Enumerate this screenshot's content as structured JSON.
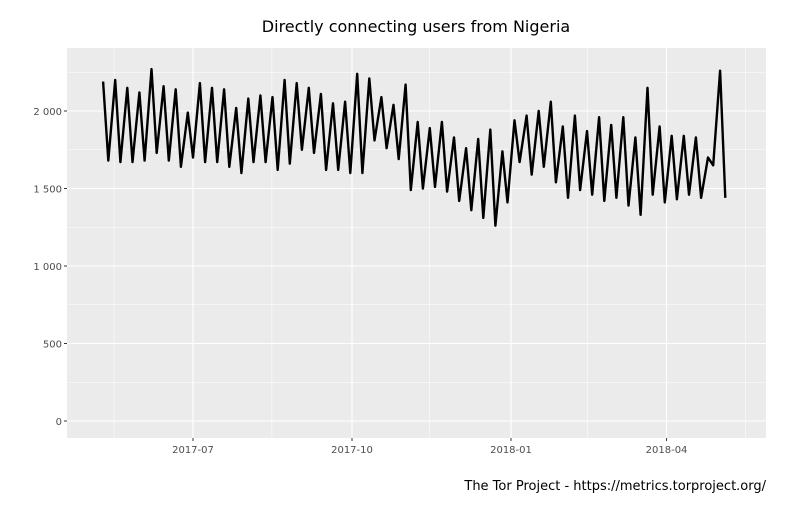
{
  "chart_data": {
    "type": "line",
    "title": "Directly connecting users from Nigeria",
    "caption": "The Tor Project - https://metrics.torproject.org/",
    "xlabel": "",
    "ylabel": "",
    "ylim": [
      0,
      2300
    ],
    "xlim": [
      "2017-04-20",
      "2018-05-25"
    ],
    "grid": true,
    "background": "#EBEBEB",
    "line_color": "#000000",
    "y_ticks": [
      {
        "value": 0,
        "label": "0"
      },
      {
        "value": 500,
        "label": "500"
      },
      {
        "value": 1000,
        "label": "1 000"
      },
      {
        "value": 1500,
        "label": "1 500"
      },
      {
        "value": 2000,
        "label": "2 000"
      }
    ],
    "x_ticks": [
      {
        "value": "2017-07-01",
        "label": "2017-07"
      },
      {
        "value": "2017-10-01",
        "label": "2017-10"
      },
      {
        "value": "2018-01-01",
        "label": "2018-01"
      },
      {
        "value": "2018-04-01",
        "label": "2018-04"
      }
    ],
    "series": [
      {
        "points": [
          [
            "2017-05-10",
            2190
          ],
          [
            "2017-05-13",
            1680
          ],
          [
            "2017-05-17",
            2200
          ],
          [
            "2017-05-20",
            1670
          ],
          [
            "2017-05-24",
            2150
          ],
          [
            "2017-05-27",
            1670
          ],
          [
            "2017-05-31",
            2120
          ],
          [
            "2017-06-03",
            1680
          ],
          [
            "2017-06-07",
            2270
          ],
          [
            "2017-06-10",
            1730
          ],
          [
            "2017-06-14",
            2160
          ],
          [
            "2017-06-17",
            1680
          ],
          [
            "2017-06-21",
            2140
          ],
          [
            "2017-06-24",
            1640
          ],
          [
            "2017-06-28",
            1990
          ],
          [
            "2017-07-01",
            1700
          ],
          [
            "2017-07-05",
            2180
          ],
          [
            "2017-07-08",
            1670
          ],
          [
            "2017-07-12",
            2150
          ],
          [
            "2017-07-15",
            1670
          ],
          [
            "2017-07-19",
            2140
          ],
          [
            "2017-07-22",
            1640
          ],
          [
            "2017-07-26",
            2020
          ],
          [
            "2017-07-29",
            1600
          ],
          [
            "2017-08-02",
            2080
          ],
          [
            "2017-08-05",
            1670
          ],
          [
            "2017-08-09",
            2100
          ],
          [
            "2017-08-12",
            1670
          ],
          [
            "2017-08-16",
            2090
          ],
          [
            "2017-08-19",
            1620
          ],
          [
            "2017-08-23",
            2200
          ],
          [
            "2017-08-26",
            1660
          ],
          [
            "2017-08-30",
            2180
          ],
          [
            "2017-09-02",
            1750
          ],
          [
            "2017-09-06",
            2150
          ],
          [
            "2017-09-09",
            1730
          ],
          [
            "2017-09-13",
            2110
          ],
          [
            "2017-09-16",
            1620
          ],
          [
            "2017-09-20",
            2050
          ],
          [
            "2017-09-23",
            1620
          ],
          [
            "2017-09-27",
            2060
          ],
          [
            "2017-09-30",
            1600
          ],
          [
            "2017-10-04",
            2240
          ],
          [
            "2017-10-07",
            1600
          ],
          [
            "2017-10-11",
            2210
          ],
          [
            "2017-10-14",
            1810
          ],
          [
            "2017-10-18",
            2090
          ],
          [
            "2017-10-21",
            1760
          ],
          [
            "2017-10-25",
            2040
          ],
          [
            "2017-10-28",
            1690
          ],
          [
            "2017-11-01",
            2170
          ],
          [
            "2017-11-04",
            1490
          ],
          [
            "2017-11-08",
            1930
          ],
          [
            "2017-11-11",
            1500
          ],
          [
            "2017-11-15",
            1890
          ],
          [
            "2017-11-18",
            1510
          ],
          [
            "2017-11-22",
            1930
          ],
          [
            "2017-11-25",
            1480
          ],
          [
            "2017-11-29",
            1830
          ],
          [
            "2017-12-02",
            1420
          ],
          [
            "2017-12-06",
            1760
          ],
          [
            "2017-12-09",
            1360
          ],
          [
            "2017-12-13",
            1820
          ],
          [
            "2017-12-16",
            1310
          ],
          [
            "2017-12-20",
            1880
          ],
          [
            "2017-12-23",
            1260
          ],
          [
            "2017-12-27",
            1740
          ],
          [
            "2017-12-30",
            1410
          ],
          [
            "2018-01-03",
            1940
          ],
          [
            "2018-01-06",
            1670
          ],
          [
            "2018-01-10",
            1970
          ],
          [
            "2018-01-13",
            1590
          ],
          [
            "2018-01-17",
            2000
          ],
          [
            "2018-01-20",
            1640
          ],
          [
            "2018-01-24",
            2060
          ],
          [
            "2018-01-27",
            1540
          ],
          [
            "2018-01-31",
            1900
          ],
          [
            "2018-02-03",
            1440
          ],
          [
            "2018-02-07",
            1970
          ],
          [
            "2018-02-10",
            1490
          ],
          [
            "2018-02-14",
            1870
          ],
          [
            "2018-02-17",
            1460
          ],
          [
            "2018-02-21",
            1960
          ],
          [
            "2018-02-24",
            1420
          ],
          [
            "2018-02-28",
            1910
          ],
          [
            "2018-03-03",
            1440
          ],
          [
            "2018-03-07",
            1960
          ],
          [
            "2018-03-10",
            1390
          ],
          [
            "2018-03-14",
            1830
          ],
          [
            "2018-03-17",
            1330
          ],
          [
            "2018-03-21",
            2150
          ],
          [
            "2018-03-24",
            1460
          ],
          [
            "2018-03-28",
            1900
          ],
          [
            "2018-03-31",
            1410
          ],
          [
            "2018-04-04",
            1840
          ],
          [
            "2018-04-07",
            1430
          ],
          [
            "2018-04-11",
            1840
          ],
          [
            "2018-04-14",
            1460
          ],
          [
            "2018-04-18",
            1830
          ],
          [
            "2018-04-21",
            1440
          ],
          [
            "2018-04-25",
            1700
          ],
          [
            "2018-04-28",
            1650
          ],
          [
            "2018-05-02",
            2260
          ],
          [
            "2018-05-05",
            1440
          ]
        ]
      }
    ]
  }
}
